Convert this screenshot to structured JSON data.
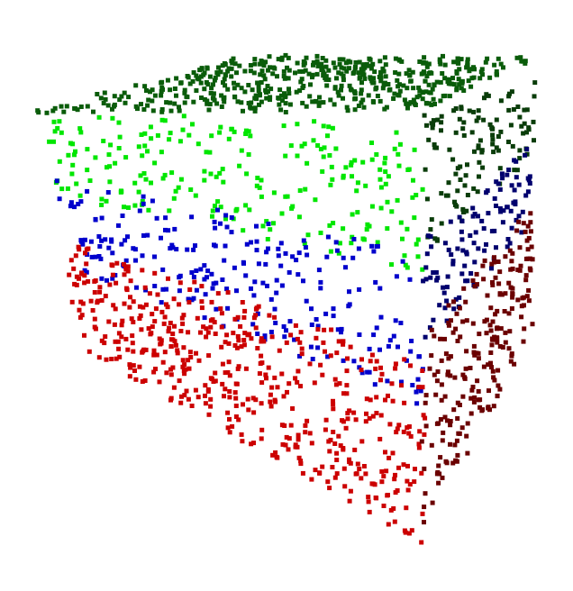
{
  "chart_data": {
    "type": "scatter",
    "subtype": "3d-point-cloud",
    "title": "",
    "xlabel": "",
    "ylabel": "",
    "zlabel": "",
    "axes_visible": false,
    "grid": false,
    "legend": "none",
    "background": "#ffffff",
    "marker": "square",
    "projection": {
      "center": [
        318,
        340
      ],
      "azimuth_deg": 0.0,
      "elevation_deg": 0.0
    },
    "view_note_units": "data units",
    "shape": "cube surface (three visible faces: top, front, right)",
    "series": [
      {
        "name": "",
        "face": "top",
        "color": "#0a5c0a"
      },
      {
        "name": "",
        "face": "front-upper",
        "color": "#00e600"
      },
      {
        "name": "",
        "face": "front-middle",
        "color": "#0000cc"
      },
      {
        "name": "",
        "face": "front-lower",
        "color": "#cc0000"
      },
      {
        "name": "",
        "face": "right-upper",
        "color": "#0a3d0a"
      },
      {
        "name": "",
        "face": "right-middle",
        "color": "#00006e"
      },
      {
        "name": "",
        "face": "right-lower",
        "color": "#6b0000"
      }
    ],
    "approx_point_counts": {
      "top": 520,
      "front-upper": 240,
      "front-middle": 240,
      "front-lower": 520,
      "right-upper": 120,
      "right-middle": 110,
      "right-lower": 230
    },
    "value_range": {
      "x": [
        -1,
        1
      ],
      "y": [
        -1,
        1
      ],
      "z": [
        -1,
        1
      ]
    }
  }
}
